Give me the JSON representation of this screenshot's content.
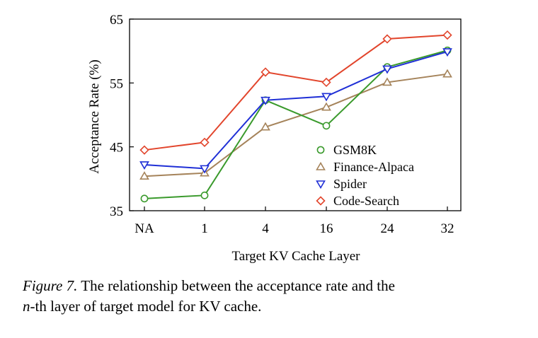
{
  "chart_data": {
    "type": "line",
    "xlabel": "Target KV Cache Layer",
    "ylabel": "Acceptance Rate (%)",
    "categories": [
      "NA",
      "1",
      "4",
      "16",
      "24",
      "32"
    ],
    "ylim": [
      35,
      65
    ],
    "yticks": [
      35,
      45,
      55,
      65
    ],
    "grid": false,
    "legend_position": "center-right",
    "series": [
      {
        "name": "GSM8K",
        "color": "#3a9a2c",
        "marker": "circle",
        "values": [
          36.9,
          37.4,
          52.3,
          48.3,
          57.5,
          60.1
        ]
      },
      {
        "name": "Finance-Alpaca",
        "color": "#a5835a",
        "marker": "triangle-up",
        "values": [
          40.4,
          40.9,
          48.1,
          51.2,
          55.1,
          56.4
        ]
      },
      {
        "name": "Spider",
        "color": "#1f2fd6",
        "marker": "triangle-down",
        "values": [
          42.2,
          41.6,
          52.3,
          52.9,
          57.2,
          59.9
        ]
      },
      {
        "name": "Code-Search",
        "color": "#e2452c",
        "marker": "diamond",
        "values": [
          44.5,
          45.7,
          56.7,
          55.1,
          61.9,
          62.5
        ]
      }
    ]
  },
  "caption": {
    "figure_label": "Figure 7.",
    "line1_rest": " The relationship between the acceptance rate and the",
    "line2_math": "n",
    "line2_rest": "-th layer of target model for KV cache."
  }
}
